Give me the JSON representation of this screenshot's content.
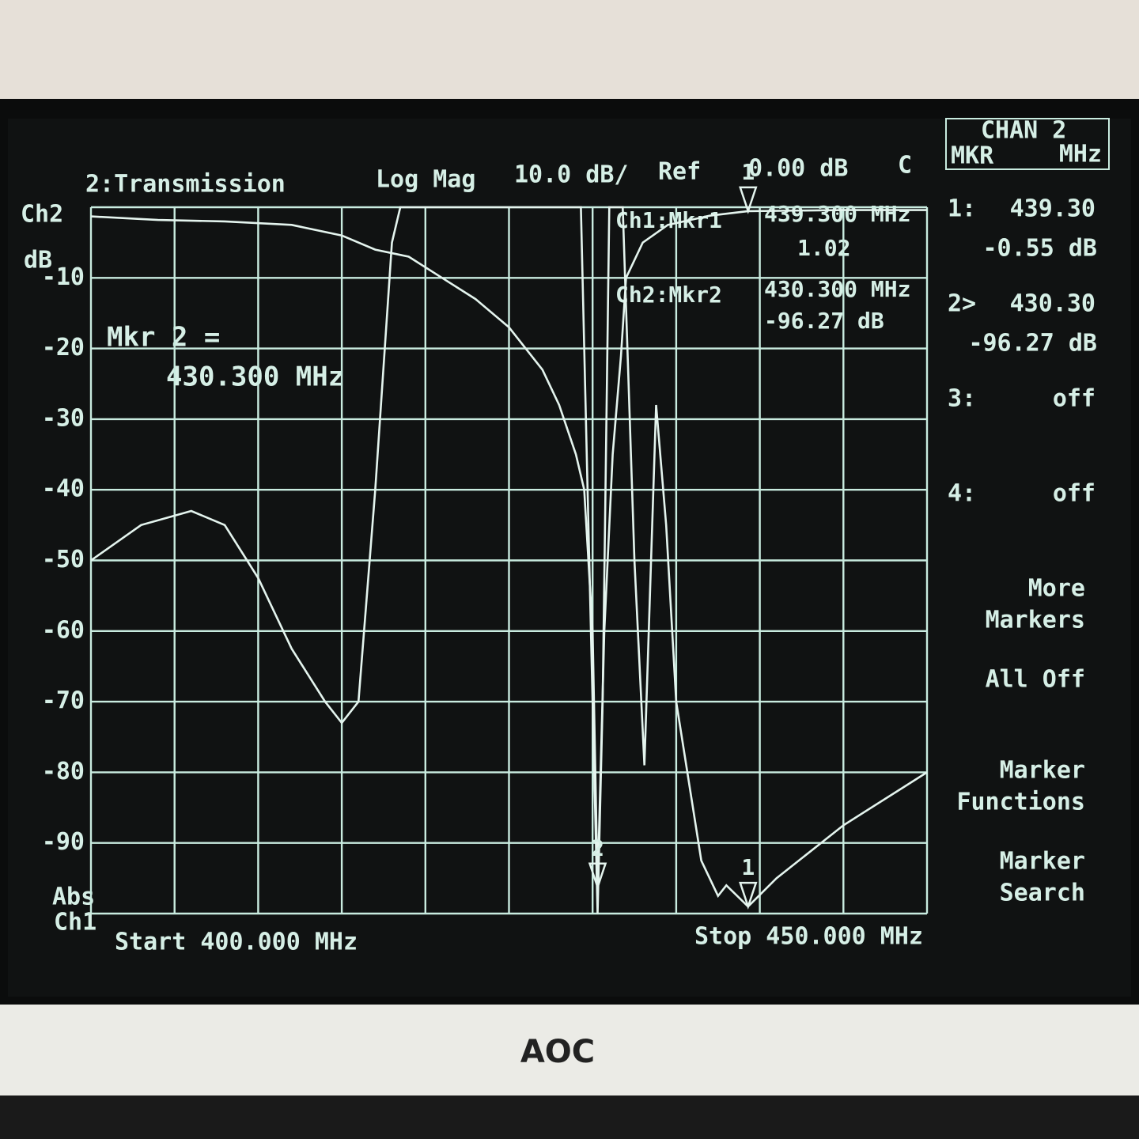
{
  "header": {
    "channel": "2:Transmission",
    "format": "Log Mag",
    "scale": "10.0 dB/",
    "ref_label": "Ref",
    "ref_value": "0.00 dB",
    "coupling": "C"
  },
  "chart_data": {
    "type": "line",
    "y_label": "dB",
    "xlim": [
      400,
      450
    ],
    "ylim": [
      -100,
      0
    ],
    "yticks": [
      -10,
      -20,
      -30,
      -40,
      -50,
      -60,
      -70,
      -80,
      -90
    ],
    "x_divisions": 10,
    "y2lim": [
      1,
      3
    ],
    "grid": true,
    "start_label": "Start 400.000 MHz",
    "stop_label": "Stop 450.000 MHz",
    "ch1_scale_label": "Abs",
    "series": [
      {
        "name": "Ch2",
        "color": "#e4f4ee",
        "x": [
          400,
          404,
          408,
          412,
          415,
          417,
          419,
          421,
          423,
          425,
          426,
          427,
          428,
          429,
          429.5,
          430,
          430.3,
          430.7,
          431.2,
          431.7,
          432,
          433,
          434.5,
          437,
          439.3,
          445,
          450
        ],
        "values": [
          -1.3,
          -1.8,
          -2,
          -2.5,
          -4,
          -6,
          -7,
          -10,
          -13,
          -17,
          -20,
          -23,
          -28,
          -35,
          -40,
          -60,
          -96.27,
          -60,
          -35,
          -21,
          -10,
          -5,
          -2.5,
          -1.2,
          -0.55,
          -0.4,
          -0.4
        ]
      },
      {
        "name": "Ch1",
        "color": "#e4f4ee",
        "axis": "y2",
        "x": [
          400,
          403,
          406,
          408,
          410,
          412,
          414,
          415,
          416,
          417,
          418,
          418.5,
          424,
          429.3,
          430,
          430.3,
          430.6,
          431,
          431.8,
          432.5,
          433.1,
          433.8,
          434.4,
          435,
          436.5,
          437.5,
          438,
          439.3,
          441,
          445,
          450
        ],
        "values": [
          2.0,
          2.1,
          2.14,
          2.1,
          1.95,
          1.75,
          1.6,
          1.54,
          1.6,
          2.2,
          2.9,
          3.0,
          3.0,
          3.0,
          1.6,
          1.0,
          1.6,
          3.0,
          3.0,
          2.0,
          1.42,
          2.44,
          2.1,
          1.6,
          1.15,
          1.05,
          1.08,
          1.02,
          1.1,
          1.25,
          1.4
        ]
      }
    ],
    "markers": [
      {
        "label": "2",
        "x": 430.3,
        "value": -96.27
      },
      {
        "label": "1",
        "x": 439.3,
        "value": -0.55
      },
      {
        "label": "1",
        "x": 439.3,
        "value": 1.02,
        "axis": "y2"
      }
    ]
  },
  "readouts": {
    "ch1_marker": "Ch1:Mkr1",
    "ch1_freq": "439.300 MHz",
    "ch1_value": "1.02",
    "ch2_marker": "Ch2:Mkr2",
    "ch2_freq": "430.300 MHz",
    "ch2_value": "-96.27 dB",
    "active_label": "Mkr 2 =",
    "active_freq": "430.300 MHz"
  },
  "panel": {
    "title": "CHAN 2",
    "col1": "MKR",
    "col2": "MHz",
    "rows": [
      {
        "id": "1:",
        "freq": "439.30",
        "value": "-0.55 dB"
      },
      {
        "id": "2>",
        "freq": "430.30",
        "value": "-96.27 dB"
      },
      {
        "id": "3:",
        "freq": "off"
      },
      {
        "id": "4:",
        "freq": "off"
      }
    ],
    "softkeys": [
      [
        "More",
        "Markers"
      ],
      [
        "All Off"
      ],
      [
        "Marker",
        "Functions"
      ],
      [
        "Marker",
        "Search"
      ]
    ]
  },
  "monitor": {
    "brand": "AOC"
  }
}
